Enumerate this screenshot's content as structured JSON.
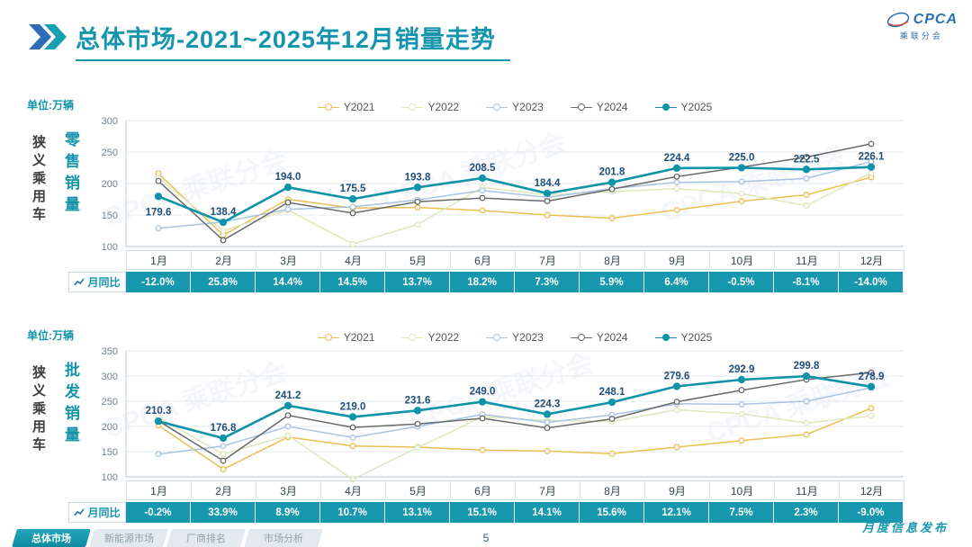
{
  "header": {
    "title": "总体市场-2021~2025年12月销量走势",
    "logo": "CPCA",
    "logo_sub": "乘联分会"
  },
  "watermark_text": "CPCA 乘联分会",
  "panels": [
    {
      "unit": "单位:万辆",
      "group": "狭义乘用车",
      "metric": "零售销量",
      "yoy_label": "月同比"
    },
    {
      "unit": "单位:万辆",
      "group": "狭义乘用车",
      "metric": "批发销量",
      "yoy_label": "月同比"
    }
  ],
  "chart_data": [
    {
      "type": "line",
      "title": "狭义乘用车零售销量",
      "ylabel": "万辆",
      "categories": [
        "1月",
        "2月",
        "3月",
        "4月",
        "5月",
        "6月",
        "7月",
        "8月",
        "9月",
        "10月",
        "11月",
        "12月"
      ],
      "ylim": [
        100,
        300
      ],
      "yticks": [
        100,
        150,
        200,
        250,
        300
      ],
      "grid": true,
      "legend_position": "top",
      "series": [
        {
          "name": "Y2021",
          "color": "#eac054",
          "values": [
            216,
            118,
            175,
            161,
            162,
            157,
            150,
            145,
            158,
            172,
            182,
            210
          ]
        },
        {
          "name": "Y2022",
          "color": "#dde8bb",
          "values": [
            209,
            125,
            158,
            104,
            135,
            194,
            182,
            187,
            192,
            184,
            165,
            217
          ]
        },
        {
          "name": "Y2023",
          "color": "#a7c4e4",
          "values": [
            129,
            139,
            159,
            163,
            174,
            189,
            178,
            192,
            202,
            203,
            208,
            235
          ]
        },
        {
          "name": "Y2024",
          "color": "#6a6a6a",
          "values": [
            204,
            110,
            170,
            153,
            171,
            177,
            172,
            191,
            211,
            226,
            242,
            263
          ]
        },
        {
          "name": "Y2025",
          "color": "#0e93a9",
          "emphasis": true,
          "show_labels": true,
          "values": [
            179.6,
            138.4,
            194.0,
            175.5,
            193.8,
            208.5,
            184.4,
            201.8,
            224.4,
            225.0,
            222.5,
            226.1
          ]
        }
      ],
      "yoy": [
        "-12.0%",
        "25.8%",
        "14.4%",
        "14.5%",
        "13.7%",
        "18.2%",
        "7.3%",
        "5.9%",
        "6.4%",
        "-0.5%",
        "-8.1%",
        "-14.0%"
      ]
    },
    {
      "type": "line",
      "title": "狭义乘用车批发销量",
      "ylabel": "万辆",
      "categories": [
        "1月",
        "2月",
        "3月",
        "4月",
        "5月",
        "6月",
        "7月",
        "8月",
        "9月",
        "10月",
        "11月",
        "12月"
      ],
      "ylim": [
        100,
        350
      ],
      "yticks": [
        100,
        150,
        200,
        250,
        300,
        350
      ],
      "grid": true,
      "legend_position": "top",
      "series": [
        {
          "name": "Y2021",
          "color": "#eac054",
          "values": [
            202,
            115,
            179,
            161,
            159,
            153,
            151,
            146,
            159,
            172,
            184,
            236
          ]
        },
        {
          "name": "Y2022",
          "color": "#dde8bb",
          "values": [
            218,
            145,
            182,
            95,
            158,
            219,
            212,
            210,
            233,
            225,
            207,
            221
          ]
        },
        {
          "name": "Y2023",
          "color": "#a7c4e4",
          "values": [
            145,
            161,
            200,
            178,
            200,
            224,
            208,
            223,
            245,
            244,
            250,
            277
          ]
        },
        {
          "name": "Y2024",
          "color": "#6a6a6a",
          "values": [
            211,
            132,
            222,
            198,
            205,
            216,
            197,
            215,
            249,
            272,
            293,
            307
          ]
        },
        {
          "name": "Y2025",
          "color": "#0e93a9",
          "emphasis": true,
          "show_labels": true,
          "values": [
            210.3,
            176.8,
            241.2,
            219.0,
            231.6,
            249.0,
            224.3,
            248.1,
            279.6,
            292.9,
            299.8,
            278.9
          ]
        }
      ],
      "yoy": [
        "-0.2%",
        "33.9%",
        "8.9%",
        "10.7%",
        "13.1%",
        "15.1%",
        "14.1%",
        "15.6%",
        "12.1%",
        "7.5%",
        "2.3%",
        "-9.0%"
      ]
    }
  ],
  "footer": {
    "tabs": [
      {
        "label": "总体市场",
        "active": true
      },
      {
        "label": "新能源市场",
        "active": false
      },
      {
        "label": "厂商排名",
        "active": false
      },
      {
        "label": "市场分析",
        "active": false
      }
    ],
    "page": "5",
    "publisher": "月度信息发布"
  },
  "colors": {
    "accent_teal": "#1898ae",
    "title_teal": "#1595ad",
    "label_navy": "#1f4e79",
    "logo_blue": "#2a6fb0"
  }
}
